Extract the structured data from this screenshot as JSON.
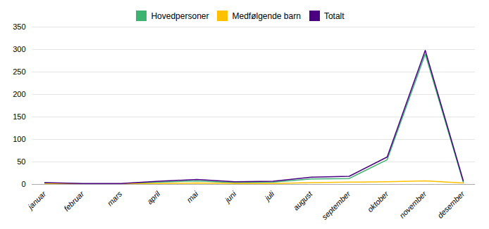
{
  "chart_data": {
    "type": "line",
    "categories": [
      "januar",
      "februar",
      "mars",
      "april",
      "mai",
      "juni",
      "juli",
      "august",
      "september",
      "oktober",
      "november",
      "desember"
    ],
    "series": [
      {
        "name": "Hovedpersoner",
        "color": "#3cb371",
        "values": [
          3,
          1,
          1,
          5,
          8,
          4,
          5,
          12,
          13,
          55,
          290,
          5
        ]
      },
      {
        "name": "Medfølgende barn",
        "color": "#ffc000",
        "values": [
          1,
          1,
          1,
          2,
          3,
          2,
          2,
          4,
          5,
          6,
          8,
          3
        ]
      },
      {
        "name": "Totalt",
        "color": "#4b0082",
        "values": [
          4,
          2,
          2,
          7,
          11,
          6,
          7,
          16,
          18,
          61,
          298,
          8
        ]
      }
    ],
    "ylim": [
      0,
      350
    ],
    "yticks": [
      0,
      50,
      100,
      150,
      200,
      250,
      300,
      350
    ],
    "grid": true,
    "legend": "top"
  }
}
